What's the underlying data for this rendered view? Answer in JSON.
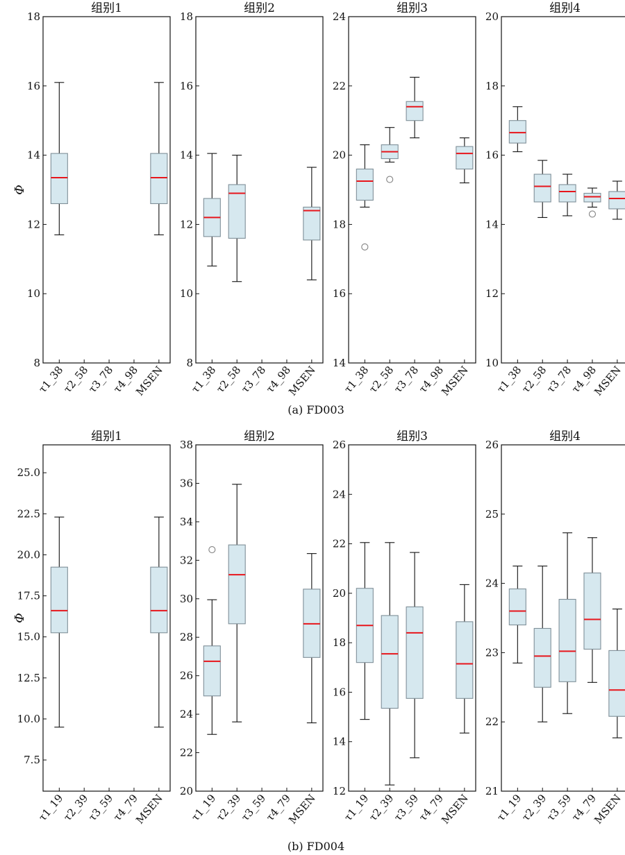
{
  "figure": {
    "colors": {
      "box_fill": "#d6e8ef",
      "box_edge": "#7f8f98",
      "median": "#e8151b",
      "whisker": "#111111",
      "outlier": "#808080"
    },
    "rows": [
      {
        "caption": "(a) FD003",
        "ylabel": "Φ"
      },
      {
        "caption": "(b) FD004",
        "ylabel": "Φ"
      }
    ]
  },
  "chart_data": [
    {
      "type": "box",
      "title": "组别1",
      "ylabel": "Φ",
      "ylim": [
        8,
        18
      ],
      "yticks": [
        "8",
        "10",
        "12",
        "14",
        "16",
        "18"
      ],
      "categories": [
        "τ1_38",
        "τ2_58",
        "τ3_78",
        "τ4_98",
        "MSEN"
      ],
      "boxes": [
        {
          "min": 11.7,
          "q1": 12.6,
          "median": 13.35,
          "q3": 14.05,
          "max": 16.1
        },
        null,
        null,
        null,
        {
          "min": 11.7,
          "q1": 12.6,
          "median": 13.35,
          "q3": 14.05,
          "max": 16.1
        }
      ]
    },
    {
      "type": "box",
      "title": "组别2",
      "ylim": [
        8,
        18
      ],
      "yticks": [
        "8",
        "10",
        "12",
        "14",
        "16",
        "18"
      ],
      "categories": [
        "τ1_38",
        "τ2_58",
        "τ3_78",
        "τ4_98",
        "MSEN"
      ],
      "boxes": [
        {
          "min": 10.8,
          "q1": 11.65,
          "median": 12.2,
          "q3": 12.75,
          "max": 14.05
        },
        {
          "min": 10.35,
          "q1": 11.6,
          "median": 12.9,
          "q3": 13.15,
          "max": 14.0
        },
        null,
        null,
        {
          "min": 10.4,
          "q1": 11.55,
          "median": 12.4,
          "q3": 12.5,
          "max": 13.65
        }
      ]
    },
    {
      "type": "box",
      "title": "组别3",
      "ylim": [
        14,
        24
      ],
      "yticks": [
        "14",
        "16",
        "18",
        "20",
        "22",
        "24"
      ],
      "categories": [
        "τ1_38",
        "τ2_58",
        "τ3_78",
        "τ4_98",
        "MSEN"
      ],
      "boxes": [
        {
          "min": 18.5,
          "q1": 18.7,
          "median": 19.25,
          "q3": 19.6,
          "max": 20.3,
          "outliers": [
            17.35
          ]
        },
        {
          "min": 19.8,
          "q1": 19.9,
          "median": 20.1,
          "q3": 20.3,
          "max": 20.8,
          "outliers": [
            19.3
          ]
        },
        {
          "min": 20.5,
          "q1": 21.0,
          "median": 21.4,
          "q3": 21.55,
          "max": 22.25
        },
        null,
        {
          "min": 19.2,
          "q1": 19.6,
          "median": 20.05,
          "q3": 20.25,
          "max": 20.5
        }
      ]
    },
    {
      "type": "box",
      "title": "组别4",
      "ylim": [
        10,
        20
      ],
      "yticks": [
        "10",
        "12",
        "14",
        "16",
        "18",
        "20"
      ],
      "categories": [
        "τ1_38",
        "τ2_58",
        "τ3_78",
        "τ4_98",
        "MSEN"
      ],
      "boxes": [
        {
          "min": 16.1,
          "q1": 16.35,
          "median": 16.65,
          "q3": 17.0,
          "max": 17.4
        },
        {
          "min": 14.2,
          "q1": 14.65,
          "median": 15.1,
          "q3": 15.45,
          "max": 15.85
        },
        {
          "min": 14.25,
          "q1": 14.65,
          "median": 14.95,
          "q3": 15.15,
          "max": 15.45
        },
        {
          "min": 14.5,
          "q1": 14.65,
          "median": 14.8,
          "q3": 14.9,
          "max": 15.05,
          "outliers": [
            14.3
          ]
        },
        {
          "min": 14.15,
          "q1": 14.45,
          "median": 14.75,
          "q3": 14.95,
          "max": 15.25
        }
      ]
    },
    {
      "type": "box",
      "title": "组别1",
      "ylabel": "Φ",
      "ylim": [
        5.6,
        26.7
      ],
      "yticks": [
        "7.5",
        "10.0",
        "12.5",
        "15.0",
        "17.5",
        "20.0",
        "22.5",
        "25.0"
      ],
      "categories": [
        "τ1_19",
        "τ2_39",
        "τ3_59",
        "τ4_79",
        "MSEN"
      ],
      "boxes": [
        {
          "min": 9.5,
          "q1": 15.25,
          "median": 16.6,
          "q3": 19.25,
          "max": 22.3
        },
        null,
        null,
        null,
        {
          "min": 9.5,
          "q1": 15.25,
          "median": 16.6,
          "q3": 19.25,
          "max": 22.3
        }
      ]
    },
    {
      "type": "box",
      "title": "组别2",
      "ylim": [
        20,
        38
      ],
      "yticks": [
        "20",
        "22",
        "24",
        "26",
        "28",
        "30",
        "32",
        "34",
        "36",
        "38"
      ],
      "categories": [
        "τ1_19",
        "τ2_39",
        "τ3_59",
        "τ4_79",
        "MSEN"
      ],
      "boxes": [
        {
          "min": 22.95,
          "q1": 24.95,
          "median": 26.75,
          "q3": 27.55,
          "max": 29.95,
          "outliers": [
            32.55
          ]
        },
        {
          "min": 23.6,
          "q1": 28.7,
          "median": 31.25,
          "q3": 32.8,
          "max": 35.95
        },
        null,
        null,
        {
          "min": 23.55,
          "q1": 26.95,
          "median": 28.7,
          "q3": 30.5,
          "max": 32.35
        }
      ]
    },
    {
      "type": "box",
      "title": "组别3",
      "ylim": [
        12,
        26
      ],
      "yticks": [
        "12",
        "14",
        "16",
        "18",
        "20",
        "22",
        "24",
        "26"
      ],
      "categories": [
        "τ1_19",
        "τ2_39",
        "τ3_59",
        "τ4_79",
        "MSEN"
      ],
      "boxes": [
        {
          "min": 14.9,
          "q1": 17.2,
          "median": 18.7,
          "q3": 20.2,
          "max": 22.05
        },
        {
          "min": 12.25,
          "q1": 15.35,
          "median": 17.55,
          "q3": 19.1,
          "max": 22.05
        },
        {
          "min": 13.35,
          "q1": 15.75,
          "median": 18.4,
          "q3": 19.45,
          "max": 21.65
        },
        null,
        {
          "min": 14.35,
          "q1": 15.75,
          "median": 17.15,
          "q3": 18.85,
          "max": 20.35
        }
      ]
    },
    {
      "type": "box",
      "title": "组别4",
      "ylim": [
        21,
        26
      ],
      "yticks": [
        "21",
        "22",
        "23",
        "24",
        "25",
        "26"
      ],
      "categories": [
        "τ1_19",
        "τ2_39",
        "τ3_59",
        "τ4_79",
        "MSEN"
      ],
      "boxes": [
        {
          "min": 22.85,
          "q1": 23.4,
          "median": 23.6,
          "q3": 23.92,
          "max": 24.25
        },
        {
          "min": 22.0,
          "q1": 22.5,
          "median": 22.95,
          "q3": 23.35,
          "max": 24.25
        },
        {
          "min": 22.12,
          "q1": 22.58,
          "median": 23.02,
          "q3": 23.77,
          "max": 24.73
        },
        {
          "min": 22.57,
          "q1": 23.05,
          "median": 23.48,
          "q3": 24.15,
          "max": 24.66
        },
        {
          "min": 21.77,
          "q1": 22.08,
          "median": 22.46,
          "q3": 23.03,
          "max": 23.63
        }
      ]
    }
  ]
}
